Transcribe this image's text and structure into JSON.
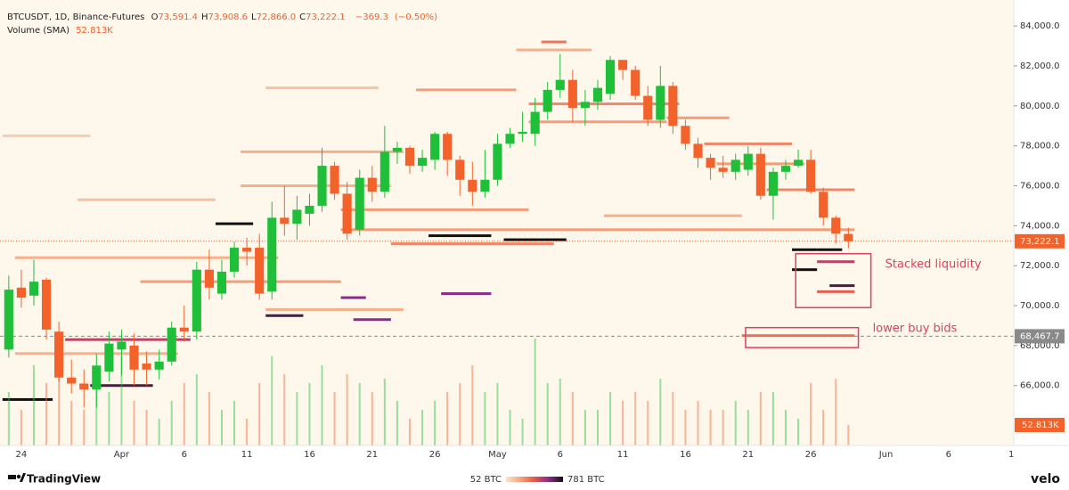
{
  "chart_data": {
    "type": "candlestick",
    "header": {
      "symbol": "BTCUSDT, 1D, Binance-Futures",
      "ohlc": [
        {
          "key": "O",
          "value": {
            "value": 73591.4,
            "label": "73,591.4"
          }
        },
        {
          "key": "H",
          "value": {
            "value": 73908.6,
            "label": "73,908.6"
          }
        },
        {
          "key": "L",
          "value": {
            "value": 72866.0,
            "label": "72,866.0"
          }
        },
        {
          "key": "C",
          "value": {
            "value": 73222.1,
            "label": "73,222.1"
          }
        }
      ],
      "change": {
        "value": -369.3,
        "label": "−369.3"
      },
      "change_pct": {
        "value": -0.5,
        "label": "(−0.50%)"
      },
      "volume_title": "Volume (SMA)",
      "volume": {
        "value": 52813,
        "label": "52.813K"
      }
    },
    "x": [
      -1,
      0,
      1,
      2,
      3,
      4,
      5,
      6,
      7,
      8,
      9,
      10,
      11,
      12,
      13,
      14,
      15,
      16,
      17,
      18,
      19,
      20,
      21,
      22,
      23,
      24,
      25,
      26,
      27,
      28,
      29,
      30,
      31,
      32,
      33,
      34,
      35,
      36,
      37,
      38,
      39,
      40,
      41,
      42,
      43,
      44,
      45,
      46,
      47,
      48,
      49,
      50,
      51,
      52,
      53,
      54,
      55,
      56,
      57,
      58,
      59,
      60,
      61,
      62,
      63,
      64,
      65,
      66
    ],
    "open": [
      67800,
      70900,
      70500,
      71300,
      68700,
      66400,
      66100,
      65800,
      66700,
      67800,
      68000,
      67100,
      66800,
      67200,
      68900,
      68700,
      71800,
      70600,
      71700,
      72900,
      72900,
      70700,
      74400,
      74100,
      74600,
      75000,
      77000,
      75600,
      73800,
      76400,
      75700,
      77700,
      77900,
      77000,
      77300,
      78600,
      77300,
      76300,
      75700,
      76300,
      78100,
      78600,
      78600,
      79700,
      80800,
      81300,
      79900,
      80200,
      80600,
      82300,
      81800,
      80500,
      79300,
      81000,
      79000,
      78100,
      77400,
      76900,
      76700,
      76800,
      77600,
      75500,
      76700,
      77000,
      77300,
      75700,
      74400,
      73591.4
    ],
    "high": [
      71500,
      71800,
      72300,
      71400,
      69200,
      67300,
      66800,
      67600,
      68700,
      68800,
      68600,
      67700,
      67800,
      69200,
      70000,
      72200,
      72800,
      72300,
      73200,
      73400,
      73600,
      75200,
      76000,
      75500,
      75600,
      77900,
      77200,
      76200,
      76800,
      77000,
      79000,
      78200,
      78000,
      77800,
      78700,
      78700,
      77500,
      77200,
      77800,
      78600,
      78900,
      79700,
      80400,
      81200,
      82600,
      81800,
      80800,
      81300,
      82500,
      82300,
      82000,
      81000,
      82000,
      81200,
      79300,
      78400,
      77600,
      77500,
      77600,
      78000,
      77900,
      76900,
      77300,
      77800,
      77800,
      75900,
      74500,
      73908.6
    ],
    "low": [
      67400,
      69900,
      70000,
      68300,
      66200,
      65600,
      64900,
      64900,
      66200,
      66500,
      66000,
      66000,
      66300,
      67000,
      68200,
      68300,
      70300,
      70300,
      71400,
      72000,
      70300,
      70300,
      73500,
      73300,
      74000,
      74700,
      75300,
      73300,
      73500,
      75200,
      75400,
      77100,
      76600,
      76700,
      76800,
      76500,
      75500,
      75000,
      75400,
      76000,
      77900,
      78200,
      78000,
      79300,
      80400,
      79200,
      79000,
      79800,
      80300,
      81300,
      80300,
      79000,
      78900,
      78600,
      77800,
      76900,
      76300,
      76400,
      76300,
      76500,
      75300,
      74300,
      76300,
      76900,
      75600,
      74000,
      73100,
      72866.0
    ],
    "close": [
      70800,
      70400,
      71200,
      68800,
      66400,
      66100,
      65800,
      67000,
      68100,
      68200,
      66800,
      66800,
      67200,
      68900,
      68700,
      71800,
      70900,
      71700,
      72900,
      72700,
      70600,
      74400,
      74100,
      74800,
      75000,
      77000,
      75600,
      73600,
      76400,
      75700,
      77700,
      77900,
      77000,
      77400,
      78600,
      77300,
      76300,
      75700,
      76300,
      78100,
      78600,
      78700,
      79700,
      80800,
      81300,
      79900,
      80200,
      80900,
      82300,
      81800,
      80500,
      79300,
      81000,
      79000,
      78100,
      77400,
      76900,
      76700,
      77300,
      77600,
      75500,
      76700,
      77000,
      77300,
      75700,
      74400,
      73600,
      73222.1
    ],
    "volume": [
      138000,
      92000,
      207000,
      161000,
      230000,
      115000,
      92000,
      184000,
      138000,
      230000,
      115000,
      92000,
      69000,
      115000,
      161000,
      184000,
      138000,
      92000,
      115000,
      69000,
      161000,
      230000,
      184000,
      138000,
      161000,
      207000,
      138000,
      184000,
      161000,
      138000,
      172000,
      115000,
      69000,
      92000,
      115000,
      138000,
      161000,
      207000,
      138000,
      161000,
      92000,
      69000,
      276000,
      161000,
      172000,
      138000,
      92000,
      92000,
      138000,
      115000,
      138000,
      115000,
      172000,
      138000,
      92000,
      115000,
      92000,
      92000,
      115000,
      92000,
      138000,
      138000,
      92000,
      69000,
      161000,
      92000,
      172000,
      52813
    ],
    "up_color": "#1fbf3a",
    "down_color": "#f2622a",
    "xlim": [
      -1.7,
      79.2
    ],
    "ylim": [
      63000,
      85300
    ],
    "volume_ylim": [
      0,
      1148000
    ],
    "xticks": [
      {
        "value": 0,
        "label": "24"
      },
      {
        "value": 8,
        "label": "Apr"
      },
      {
        "value": 13,
        "label": "6"
      },
      {
        "value": 18,
        "label": "11"
      },
      {
        "value": 23,
        "label": "16"
      },
      {
        "value": 28,
        "label": "21"
      },
      {
        "value": 33,
        "label": "26"
      },
      {
        "value": 38,
        "label": "May"
      },
      {
        "value": 43,
        "label": "6"
      },
      {
        "value": 48,
        "label": "11"
      },
      {
        "value": 53,
        "label": "16"
      },
      {
        "value": 58,
        "label": "21"
      },
      {
        "value": 63,
        "label": "26"
      },
      {
        "value": 69,
        "label": "Jun"
      },
      {
        "value": 74,
        "label": "6"
      },
      {
        "value": 79,
        "label": "1"
      }
    ],
    "yticks": [
      {
        "value": 66000,
        "label": "66,000.0"
      },
      {
        "value": 68000,
        "label": "68,000.0"
      },
      {
        "value": 70000,
        "label": "70,000.0"
      },
      {
        "value": 72000,
        "label": "72,000.0"
      },
      {
        "value": 74000,
        "label": "74,000.0"
      },
      {
        "value": 76000,
        "label": "76,000.0"
      },
      {
        "value": 78000,
        "label": "78,000.0"
      },
      {
        "value": 80000,
        "label": "80,000.0"
      },
      {
        "value": 82000,
        "label": "82,000.0"
      },
      {
        "value": 84000,
        "label": "84,000.0"
      }
    ],
    "price_lines": [
      {
        "value": {
          "value": 73222.1,
          "label": "73,222.1"
        },
        "color": "#f2622a",
        "style": "dotted"
      },
      {
        "value": {
          "value": 68467.7,
          "label": "68,467.7"
        },
        "color": "#8a8a8a",
        "style": "dashed"
      }
    ],
    "annotations": [
      {
        "text": "Stacked liquidity",
        "x": [
          61.8,
          67.8
        ],
        "y": [
          69900,
          72600
        ],
        "color": "#e0405a"
      },
      {
        "text": "lower buy bids",
        "x": [
          57.8,
          66.8
        ],
        "y": [
          67900,
          68900
        ],
        "color": "#e0405a"
      }
    ],
    "heatmap": {
      "min": {
        "value": 52,
        "label": "52 BTC"
      },
      "max": {
        "value": 781,
        "label": "781 BTC"
      },
      "colors": [
        "#fbe4cf",
        "#f5a47c",
        "#e5574a",
        "#8b2b8c",
        "#111111"
      ],
      "levels": [
        {
          "price": 73800,
          "start": 26,
          "end": 66,
          "size": 250
        },
        {
          "price": 73500,
          "start": 33,
          "end": 37,
          "size": 781
        },
        {
          "price": 73300,
          "start": 39,
          "end": 43,
          "size": 781
        },
        {
          "price": 74100,
          "start": 16,
          "end": 18,
          "size": 781
        },
        {
          "price": 65300,
          "start": -1,
          "end": 2,
          "size": 781
        },
        {
          "price": 68300,
          "start": 4,
          "end": 13,
          "size": 500
        },
        {
          "price": 66000,
          "start": 6,
          "end": 10,
          "size": 700
        },
        {
          "price": 69500,
          "start": 20,
          "end": 22,
          "size": 700
        },
        {
          "price": 70400,
          "start": 26,
          "end": 27,
          "size": 600
        },
        {
          "price": 69300,
          "start": 27,
          "end": 29,
          "size": 600
        },
        {
          "price": 70600,
          "start": 34,
          "end": 37,
          "size": 600
        },
        {
          "price": 72800,
          "start": 62,
          "end": 63,
          "size": 781
        },
        {
          "price": 71800,
          "start": 62,
          "end": 63,
          "size": 781
        },
        {
          "price": 72800,
          "start": 64,
          "end": 65,
          "size": 781
        },
        {
          "price": 71000,
          "start": 65,
          "end": 66,
          "size": 700
        },
        {
          "price": 70700,
          "start": 64,
          "end": 66,
          "size": 400
        },
        {
          "price": 72200,
          "start": 64,
          "end": 66,
          "size": 500
        },
        {
          "price": 68500,
          "start": 58,
          "end": 66,
          "size": 350
        },
        {
          "price": 80100,
          "start": 41,
          "end": 52,
          "size": 300
        },
        {
          "price": 79200,
          "start": 41,
          "end": 51,
          "size": 250
        },
        {
          "price": 82800,
          "start": 40,
          "end": 45,
          "size": 200
        },
        {
          "price": 83200,
          "start": 42,
          "end": 43,
          "size": 350
        },
        {
          "price": 79400,
          "start": 52,
          "end": 56,
          "size": 250
        },
        {
          "price": 78100,
          "start": 55,
          "end": 61,
          "size": 300
        },
        {
          "price": 77100,
          "start": 56,
          "end": 62,
          "size": 250
        },
        {
          "price": 75800,
          "start": 60,
          "end": 66,
          "size": 300
        },
        {
          "price": 74500,
          "start": 47,
          "end": 57,
          "size": 200
        },
        {
          "price": 80800,
          "start": 32,
          "end": 39,
          "size": 250
        },
        {
          "price": 77700,
          "start": 18,
          "end": 30,
          "size": 200
        },
        {
          "price": 76000,
          "start": 18,
          "end": 29,
          "size": 200
        },
        {
          "price": 74800,
          "start": 26,
          "end": 40,
          "size": 250
        },
        {
          "price": 72400,
          "start": 0,
          "end": 20,
          "size": 200
        },
        {
          "price": 71200,
          "start": 10,
          "end": 25,
          "size": 250
        },
        {
          "price": 69800,
          "start": 20,
          "end": 30,
          "size": 200
        },
        {
          "price": 67600,
          "start": 0,
          "end": 12,
          "size": 200
        },
        {
          "price": 73100,
          "start": 30,
          "end": 42,
          "size": 300
        },
        {
          "price": 75300,
          "start": 5,
          "end": 15,
          "size": 150
        },
        {
          "price": 78500,
          "start": -1,
          "end": 5,
          "size": 120
        },
        {
          "price": 80900,
          "start": 20,
          "end": 28,
          "size": 150
        }
      ]
    },
    "brand": "TradingView",
    "source": "velo"
  }
}
